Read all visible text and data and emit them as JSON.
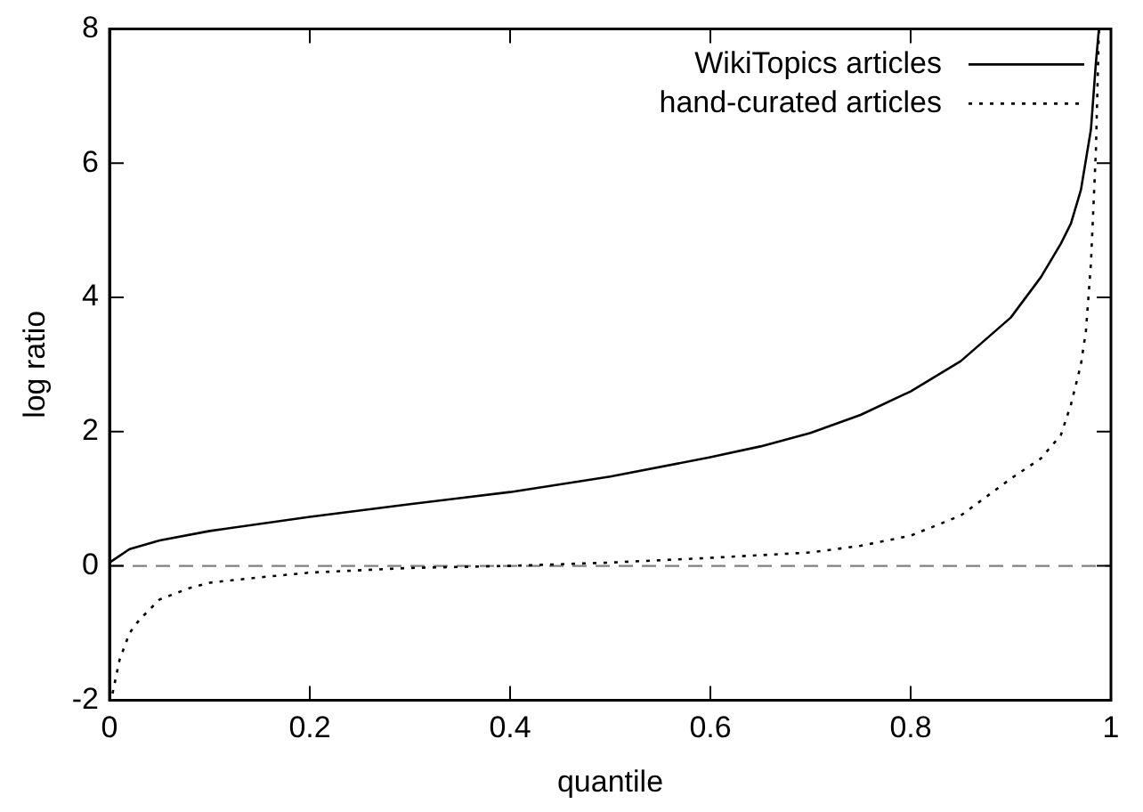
{
  "chart_data": {
    "type": "line",
    "xlabel": "quantile",
    "ylabel": "log ratio",
    "xlim": [
      0,
      1
    ],
    "xticks": [
      0,
      0.2,
      0.4,
      0.6,
      0.8,
      1
    ],
    "ylim": [
      -2,
      8
    ],
    "yticks": [
      -2,
      0,
      2,
      4,
      6,
      8
    ],
    "grid": false,
    "legend": "top right",
    "marker": "none",
    "series": [
      {
        "name": "WikiTopics articles",
        "color": "#000000",
        "line_style": "solid",
        "x": [
          0,
          0.02,
          0.05,
          0.1,
          0.2,
          0.3,
          0.4,
          0.5,
          0.6,
          0.65,
          0.7,
          0.75,
          0.8,
          0.85,
          0.9,
          0.93,
          0.95,
          0.96,
          0.97,
          0.98,
          0.985,
          0.988
        ],
        "values": [
          0.05,
          0.25,
          0.38,
          0.52,
          0.73,
          0.92,
          1.1,
          1.33,
          1.62,
          1.78,
          1.98,
          2.25,
          2.6,
          3.05,
          3.7,
          4.3,
          4.8,
          5.1,
          5.6,
          6.5,
          7.5,
          8
        ]
      },
      {
        "name": "hand-curated articles",
        "color": "#000000",
        "line_style": "dotted",
        "x": [
          0.003,
          0.01,
          0.02,
          0.03,
          0.05,
          0.08,
          0.1,
          0.15,
          0.2,
          0.3,
          0.4,
          0.5,
          0.6,
          0.7,
          0.75,
          0.8,
          0.85,
          0.9,
          0.93,
          0.95,
          0.96,
          0.97,
          0.975,
          0.98,
          0.985,
          0.988
        ],
        "values": [
          -1.9,
          -1.4,
          -1.0,
          -0.8,
          -0.5,
          -0.33,
          -0.25,
          -0.17,
          -0.1,
          -0.03,
          0,
          0.05,
          0.12,
          0.2,
          0.3,
          0.45,
          0.75,
          1.3,
          1.6,
          1.95,
          2.4,
          3.0,
          3.5,
          4.5,
          6.2,
          8
        ]
      }
    ],
    "ref_lines": [
      {
        "axis": "y",
        "value": 0,
        "color": "#808080",
        "line_style": "dashed"
      }
    ]
  }
}
